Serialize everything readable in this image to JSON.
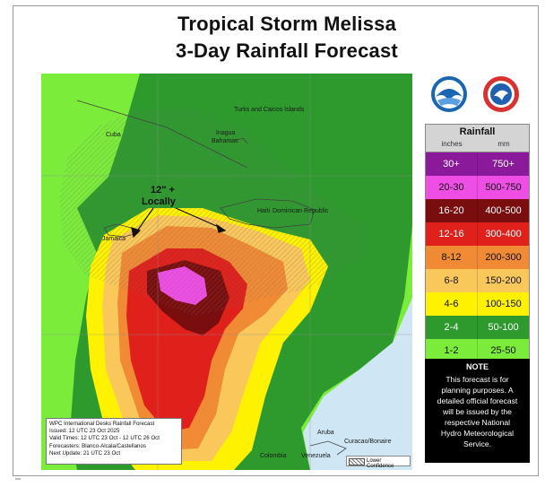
{
  "title": {
    "line1": "Tropical Storm Melissa",
    "line2": "3-Day Rainfall Forecast"
  },
  "map": {
    "place_labels": [
      "Turks and Caicos Islands",
      "Cuba",
      "Inagua",
      "Bahamas",
      "Haiti",
      "Dominican Republic",
      "Jamaica",
      "Aruba",
      "Curacao/Bonaire",
      "Colombia",
      "Venezuela"
    ],
    "annotation_line1": "12\" +",
    "annotation_line2": "Locally"
  },
  "logos": {
    "left": "noaa-logo",
    "right": "nws-logo"
  },
  "legend": {
    "title": "Rainfall",
    "unit_inches": "inches",
    "unit_mm": "mm",
    "rows": [
      {
        "inches": "30+",
        "mm": "750+",
        "color": "#8b1a9a",
        "text": "#ffffff"
      },
      {
        "inches": "20-30",
        "mm": "500-750",
        "color": "#ee4ee4",
        "text": "#111111"
      },
      {
        "inches": "16-20",
        "mm": "400-500",
        "color": "#7a0d0d",
        "text": "#ffffff"
      },
      {
        "inches": "12-16",
        "mm": "300-400",
        "color": "#e0201b",
        "text": "#ffffff"
      },
      {
        "inches": "8-12",
        "mm": "200-300",
        "color": "#f08a35",
        "text": "#111111"
      },
      {
        "inches": "6-8",
        "mm": "150-200",
        "color": "#fac85a",
        "text": "#111111"
      },
      {
        "inches": "4-6",
        "mm": "100-150",
        "color": "#fff200",
        "text": "#111111"
      },
      {
        "inches": "2-4",
        "mm": "50-100",
        "color": "#2e9a2e",
        "text": "#ffffff"
      },
      {
        "inches": "1-2",
        "mm": "25-50",
        "color": "#7cec3a",
        "text": "#111111"
      }
    ]
  },
  "note": {
    "title": "NOTE",
    "lines": [
      "This forecast is for",
      "planning purposes. A",
      "detailed official forecast",
      "will be issued by the",
      "respective National",
      "Hydro Meteorological",
      "Service."
    ]
  },
  "info_box": {
    "lines": [
      "WPC International Desks Rainfall Forecast",
      "Issued: 12 UTC 23 Oct 2025",
      "Valid Times: 12 UTC 23 Oct - 12 UTC 26 Oct",
      "Forecasters: Blanco-Alcala/Castellanos",
      "Next Update: 21 UTC 23 Oct"
    ]
  },
  "lower_confidence": "Lower Confidence"
}
